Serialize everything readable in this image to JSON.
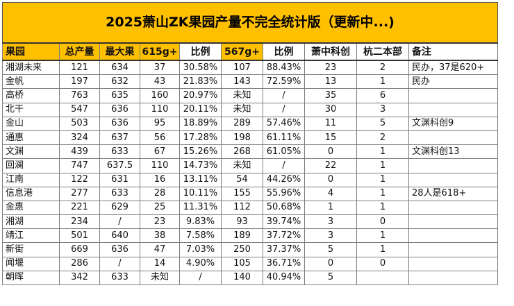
{
  "title": "2025萧山ZK果园产量不完全统计版（更新中...)",
  "headers": [
    "果园",
    "总产量",
    "最大果",
    "615g+",
    "比例",
    "567g+",
    "比例",
    "萧中科创",
    "杭二本部",
    "备注"
  ],
  "rows": [
    [
      "湘湖未来",
      "121",
      "634",
      "37",
      "30.58%",
      "107",
      "88.43%",
      "23",
      "2",
      "民办，37是620+"
    ],
    [
      "金帆",
      "197",
      "632",
      "43",
      "21.83%",
      "143",
      "72.59%",
      "13",
      "1",
      "民办"
    ],
    [
      "高桥",
      "763",
      "635",
      "160",
      "20.97%",
      "未知",
      "/",
      "35",
      "6",
      ""
    ],
    [
      "北干",
      "547",
      "636",
      "110",
      "20.11%",
      "未知",
      "/",
      "30",
      "3",
      ""
    ],
    [
      "金山",
      "503",
      "636",
      "95",
      "18.89%",
      "289",
      "57.46%",
      "11",
      "5",
      "文渊科创9"
    ],
    [
      "通惠",
      "324",
      "637",
      "56",
      "17.28%",
      "198",
      "61.11%",
      "15",
      "2",
      ""
    ],
    [
      "文渊",
      "439",
      "633",
      "67",
      "15.26%",
      "268",
      "61.05%",
      "0",
      "1",
      "文渊科创13"
    ],
    [
      "回澜",
      "747",
      "637.5",
      "110",
      "14.73%",
      "未知",
      "/",
      "22",
      "1",
      ""
    ],
    [
      "江南",
      "122",
      "631",
      "16",
      "13.11%",
      "54",
      "44.26%",
      "0",
      "1",
      ""
    ],
    [
      "信息港",
      "277",
      "633",
      "28",
      "10.11%",
      "155",
      "55.96%",
      "4",
      "1",
      "28人是618+"
    ],
    [
      "金惠",
      "221",
      "629",
      "25",
      "11.31%",
      "112",
      "50.68%",
      "1",
      "1",
      ""
    ],
    [
      "湘湖",
      "234",
      "/",
      "23",
      "9.83%",
      "93",
      "39.74%",
      "3",
      "0",
      ""
    ],
    [
      "靖江",
      "501",
      "640",
      "38",
      "7.58%",
      "189",
      "37.72%",
      "3",
      "1",
      ""
    ],
    [
      "新街",
      "669",
      "636",
      "47",
      "7.03%",
      "250",
      "37.37%",
      "5",
      "1",
      ""
    ],
    [
      "闻堰",
      "286",
      "/",
      "14",
      "4.90%",
      "105",
      "36.71%",
      "0",
      "0",
      ""
    ],
    [
      "朝晖",
      "342",
      "633",
      "未知",
      "/",
      "140",
      "40.94%",
      "5",
      "",
      ""
    ]
  ],
  "colors": {
    "title_bg": "#ffc000",
    "header_highlight": "#ffc000",
    "grid": "#7d7d7d"
  }
}
